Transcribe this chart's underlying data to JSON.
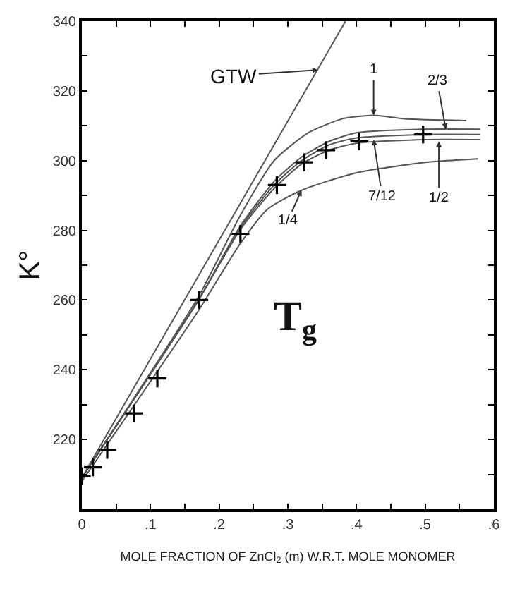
{
  "chart_data": {
    "type": "line",
    "xlabel": "MOLE FRACTION OF ZnCl$_{2}$ (m) W.R.T. MOLE MONOMER",
    "ylabel": "K°",
    "xlim": [
      0,
      0.6
    ],
    "ylim": [
      200,
      340
    ],
    "xticks": [
      0,
      {
        "value": 0.05,
        "label": null
      },
      {
        "value": 0.1,
        "label": ".1"
      },
      {
        "value": 0.15,
        "label": null
      },
      {
        "value": 0.2,
        "label": ".2"
      },
      {
        "value": 0.25,
        "label": null
      },
      {
        "value": 0.3,
        "label": ".3"
      },
      {
        "value": 0.35,
        "label": null
      },
      {
        "value": 0.4,
        "label": ".4"
      },
      {
        "value": 0.45,
        "label": null
      },
      {
        "value": 0.5,
        "label": ".5"
      },
      {
        "value": 0.55,
        "label": null
      },
      {
        "value": 0.6,
        "label": ".6"
      }
    ],
    "yticks": [
      {
        "value": 210,
        "label": null
      },
      220,
      {
        "value": 230,
        "label": null
      },
      240,
      {
        "value": 250,
        "label": null
      },
      260,
      {
        "value": 270,
        "label": null
      },
      280,
      {
        "value": 290,
        "label": null
      },
      300,
      {
        "value": 310,
        "label": null
      },
      320,
      {
        "value": 330,
        "label": null
      },
      340
    ],
    "line_style": "solid",
    "marker": "none",
    "series": [
      {
        "color": "#555555",
        "x": [
          0,
          0.384
        ],
        "values": [
          209,
          340
        ]
      },
      {
        "color": "#555555",
        "x": [
          0,
          0.17,
          0.23,
          0.28,
          0.33,
          0.38,
          0.425,
          0.47,
          0.56
        ],
        "values": [
          209,
          261,
          284,
          300,
          308,
          312,
          313,
          312,
          311.5
        ]
      },
      {
        "color": "#555555",
        "x": [
          0,
          0.17,
          0.23,
          0.28,
          0.32,
          0.36,
          0.4,
          0.5,
          0.58
        ],
        "values": [
          209,
          260,
          281,
          294,
          301,
          305.5,
          308,
          309,
          309
        ]
      },
      {
        "color": "#555555",
        "x": [
          0,
          0.17,
          0.23,
          0.28,
          0.32,
          0.36,
          0.4,
          0.5,
          0.58
        ],
        "values": [
          209,
          260,
          280.5,
          293,
          300,
          304.5,
          306.5,
          307.5,
          307.5
        ]
      },
      {
        "color": "#555555",
        "x": [
          0,
          0.17,
          0.23,
          0.28,
          0.32,
          0.36,
          0.4,
          0.5,
          0.58
        ],
        "values": [
          209,
          260,
          280,
          292,
          299,
          303,
          305,
          306,
          306
        ]
      },
      {
        "color": "#555555",
        "x": [
          0,
          0.17,
          0.23,
          0.27,
          0.32,
          0.4,
          0.5,
          0.577
        ],
        "values": [
          208,
          257,
          276,
          286,
          291.5,
          296.5,
          299.5,
          300.5
        ]
      },
      {
        "type": "scatter",
        "color": "#000000",
        "marker": "cross",
        "x": [
          0,
          0.016,
          0.037,
          0.076,
          0.11,
          0.171,
          0.231,
          0.284,
          0.324,
          0.356,
          0.404,
          0.497
        ],
        "values": [
          209.5,
          212,
          217,
          227.5,
          237.5,
          260,
          279,
          293,
          299.5,
          303,
          305.5,
          307.5
        ]
      }
    ],
    "annotations": [
      {
        "text": "GTW",
        "x": 0.344,
        "y": 326
      },
      {
        "text": "1",
        "x": 0.425,
        "y": 313
      },
      {
        "text": "2/3",
        "x": 0.53,
        "y": 309
      },
      {
        "text": "7/12",
        "x": 0.425,
        "y": 306
      },
      {
        "text": "1/2",
        "x": 0.52,
        "y": 305.5
      },
      {
        "text": "1/4",
        "x": 0.32,
        "y": 291.5
      },
      "T$_{g}$"
    ]
  }
}
